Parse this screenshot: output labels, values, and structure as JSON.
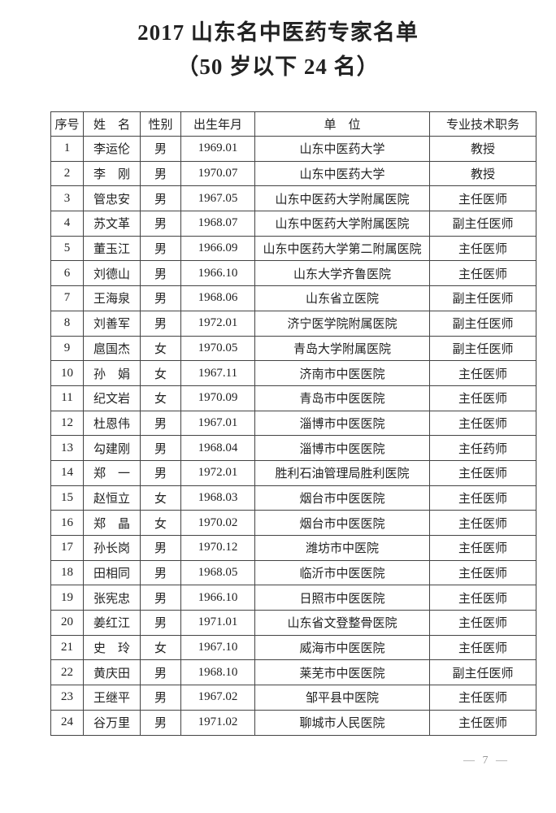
{
  "document": {
    "title": "2017 山东名中医药专家名单",
    "subtitle": "（50 岁以下 24 名）",
    "page_number": "— 7 —"
  },
  "table": {
    "headers": [
      "序号",
      "姓　名",
      "性别",
      "出生年月",
      "单　位",
      "专业技术职务"
    ],
    "rows": [
      [
        "1",
        "李运伦",
        "男",
        "1969.01",
        "山东中医药大学",
        "教授"
      ],
      [
        "2",
        "李　刚",
        "男",
        "1970.07",
        "山东中医药大学",
        "教授"
      ],
      [
        "3",
        "管忠安",
        "男",
        "1967.05",
        "山东中医药大学附属医院",
        "主任医师"
      ],
      [
        "4",
        "苏文革",
        "男",
        "1968.07",
        "山东中医药大学附属医院",
        "副主任医师"
      ],
      [
        "5",
        "董玉江",
        "男",
        "1966.09",
        "山东中医药大学第二附属医院",
        "主任医师"
      ],
      [
        "6",
        "刘德山",
        "男",
        "1966.10",
        "山东大学齐鲁医院",
        "主任医师"
      ],
      [
        "7",
        "王海泉",
        "男",
        "1968.06",
        "山东省立医院",
        "副主任医师"
      ],
      [
        "8",
        "刘善军",
        "男",
        "1972.01",
        "济宁医学院附属医院",
        "副主任医师"
      ],
      [
        "9",
        "扈国杰",
        "女",
        "1970.05",
        "青岛大学附属医院",
        "副主任医师"
      ],
      [
        "10",
        "孙　娟",
        "女",
        "1967.11",
        "济南市中医医院",
        "主任医师"
      ],
      [
        "11",
        "纪文岩",
        "女",
        "1970.09",
        "青岛市中医医院",
        "主任医师"
      ],
      [
        "12",
        "杜恩伟",
        "男",
        "1967.01",
        "淄博市中医医院",
        "主任医师"
      ],
      [
        "13",
        "勾建刚",
        "男",
        "1968.04",
        "淄博市中医医院",
        "主任药师"
      ],
      [
        "14",
        "郑　一",
        "男",
        "1972.01",
        "胜利石油管理局胜利医院",
        "主任医师"
      ],
      [
        "15",
        "赵恒立",
        "女",
        "1968.03",
        "烟台市中医医院",
        "主任医师"
      ],
      [
        "16",
        "郑　晶",
        "女",
        "1970.02",
        "烟台市中医医院",
        "主任医师"
      ],
      [
        "17",
        "孙长岗",
        "男",
        "1970.12",
        "潍坊市中医院",
        "主任医师"
      ],
      [
        "18",
        "田相同",
        "男",
        "1968.05",
        "临沂市中医医院",
        "主任医师"
      ],
      [
        "19",
        "张宪忠",
        "男",
        "1966.10",
        "日照市中医医院",
        "主任医师"
      ],
      [
        "20",
        "姜红江",
        "男",
        "1971.01",
        "山东省文登整骨医院",
        "主任医师"
      ],
      [
        "21",
        "史　玲",
        "女",
        "1967.10",
        "威海市中医医院",
        "主任医师"
      ],
      [
        "22",
        "黄庆田",
        "男",
        "1968.10",
        "莱芜市中医医院",
        "副主任医师"
      ],
      [
        "23",
        "王继平",
        "男",
        "1967.02",
        "邹平县中医院",
        "主任医师"
      ],
      [
        "24",
        "谷万里",
        "男",
        "1971.02",
        "聊城市人民医院",
        "主任医师"
      ]
    ]
  }
}
